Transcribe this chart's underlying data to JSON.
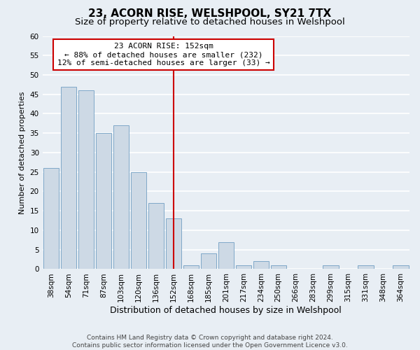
{
  "title": "23, ACORN RISE, WELSHPOOL, SY21 7TX",
  "subtitle": "Size of property relative to detached houses in Welshpool",
  "xlabel": "Distribution of detached houses by size in Welshpool",
  "ylabel": "Number of detached properties",
  "bar_labels": [
    "38sqm",
    "54sqm",
    "71sqm",
    "87sqm",
    "103sqm",
    "120sqm",
    "136sqm",
    "152sqm",
    "168sqm",
    "185sqm",
    "201sqm",
    "217sqm",
    "234sqm",
    "250sqm",
    "266sqm",
    "283sqm",
    "299sqm",
    "315sqm",
    "331sqm",
    "348sqm",
    "364sqm"
  ],
  "bar_values": [
    26,
    47,
    46,
    35,
    37,
    25,
    17,
    13,
    1,
    4,
    7,
    1,
    2,
    1,
    0,
    0,
    1,
    0,
    1,
    0,
    1
  ],
  "bar_color": "#cdd9e5",
  "bar_edge_color": "#7fa8c8",
  "highlight_index": 7,
  "highlight_line_color": "#cc0000",
  "ylim": [
    0,
    60
  ],
  "yticks": [
    0,
    5,
    10,
    15,
    20,
    25,
    30,
    35,
    40,
    45,
    50,
    55,
    60
  ],
  "annotation_title": "23 ACORN RISE: 152sqm",
  "annotation_line1": "← 88% of detached houses are smaller (232)",
  "annotation_line2": "12% of semi-detached houses are larger (33) →",
  "annotation_box_color": "#ffffff",
  "annotation_box_edge": "#cc0000",
  "footer1": "Contains HM Land Registry data © Crown copyright and database right 2024.",
  "footer2": "Contains public sector information licensed under the Open Government Licence v3.0.",
  "background_color": "#e8eef4",
  "grid_color": "#ffffff",
  "title_fontsize": 11,
  "subtitle_fontsize": 9.5,
  "xlabel_fontsize": 9,
  "ylabel_fontsize": 8,
  "tick_fontsize": 7.5,
  "annotation_fontsize": 8,
  "footer_fontsize": 6.5
}
